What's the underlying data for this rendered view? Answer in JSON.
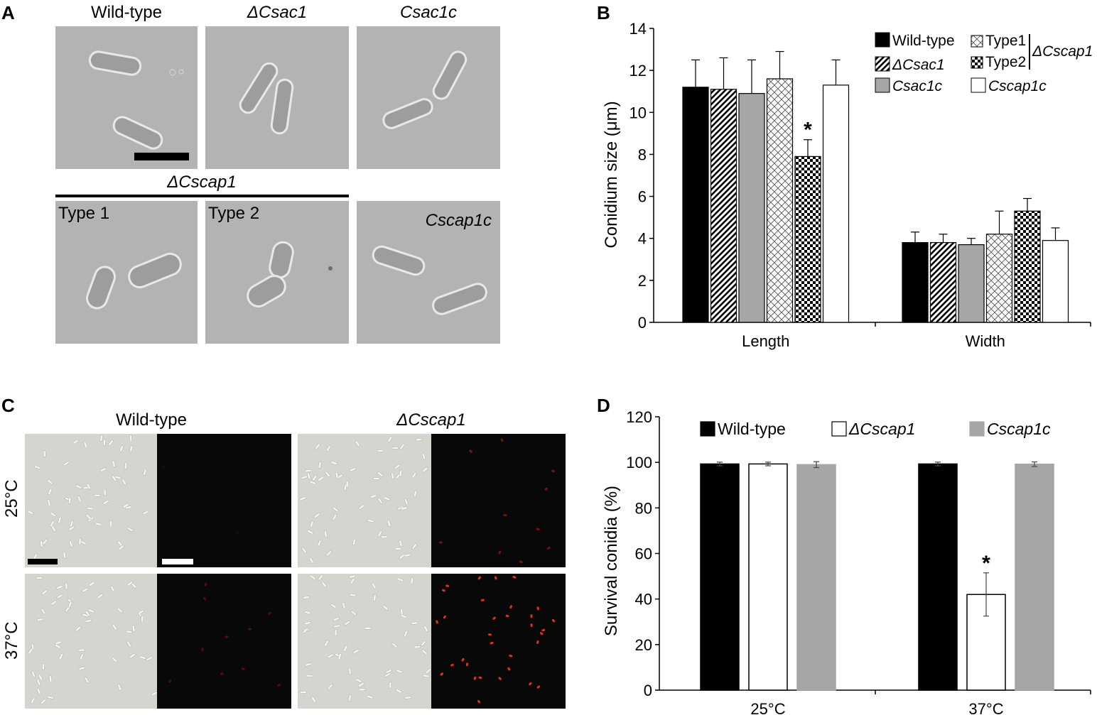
{
  "panel_a": {
    "letter": "A",
    "top_labels": [
      "Wild-type",
      "ΔCsac1",
      "Csac1c"
    ],
    "group_label": "ΔCscap1",
    "bottom_labels": [
      "Type 1",
      "Type 2",
      "Cscap1c"
    ]
  },
  "panel_b": {
    "letter": "B"
  },
  "panel_c": {
    "letter": "C",
    "col_labels": [
      "Wild-type",
      "ΔCscap1"
    ],
    "row_labels": [
      "25°C",
      "37°C"
    ]
  },
  "panel_d": {
    "letter": "D"
  },
  "chart_data": [
    {
      "type": "bar",
      "ylabel": "Conidium size (μm)",
      "categories": [
        "Length",
        "Width"
      ],
      "ylim": [
        0,
        14
      ],
      "yticks": [
        0,
        2,
        4,
        6,
        8,
        10,
        12,
        14
      ],
      "series": [
        {
          "name": "Wild-type",
          "values": [
            11.2,
            3.8
          ],
          "errors": [
            1.3,
            0.5
          ],
          "fill": "solid-black"
        },
        {
          "name": "ΔCsac1",
          "values": [
            11.1,
            3.8
          ],
          "errors": [
            1.5,
            0.4
          ],
          "fill": "diagonal-hatch"
        },
        {
          "name": "Csac1c",
          "values": [
            10.9,
            3.7
          ],
          "errors": [
            1.6,
            0.3
          ],
          "fill": "solid-gray"
        },
        {
          "name": "Type1",
          "values": [
            11.6,
            4.2
          ],
          "errors": [
            1.3,
            1.1
          ],
          "fill": "crosshatch"
        },
        {
          "name": "Type2",
          "values": [
            7.9,
            5.3
          ],
          "errors": [
            0.8,
            0.6
          ],
          "fill": "checker"
        },
        {
          "name": "Cscap1c",
          "values": [
            11.3,
            3.9
          ],
          "errors": [
            1.2,
            0.6
          ],
          "fill": "white"
        }
      ],
      "legend_group_label": "ΔCscap1",
      "annotations": [
        {
          "text": "*",
          "category": "Length",
          "series": "Type2"
        }
      ],
      "legend_position": "top-right"
    },
    {
      "type": "bar",
      "ylabel": "Survival conidia (%)",
      "categories": [
        "25°C",
        "37°C"
      ],
      "ylim": [
        0,
        120
      ],
      "yticks": [
        0,
        20,
        40,
        60,
        80,
        100,
        120
      ],
      "series": [
        {
          "name": "Wild-type",
          "values": [
            99.3,
            99.3
          ],
          "errors": [
            0.8,
            0.8
          ],
          "color": "#000000"
        },
        {
          "name": "ΔCscap1",
          "values": [
            99.3,
            42
          ],
          "errors": [
            0.8,
            9.5
          ],
          "color": "#ffffff"
        },
        {
          "name": "Cscap1c",
          "values": [
            99.0,
            99.2
          ],
          "errors": [
            1.3,
            1.0
          ],
          "color": "#a6a6a6"
        }
      ],
      "annotations": [
        {
          "text": "*",
          "category": "37°C",
          "series": "ΔCscap1"
        }
      ],
      "legend_position": "top"
    }
  ]
}
